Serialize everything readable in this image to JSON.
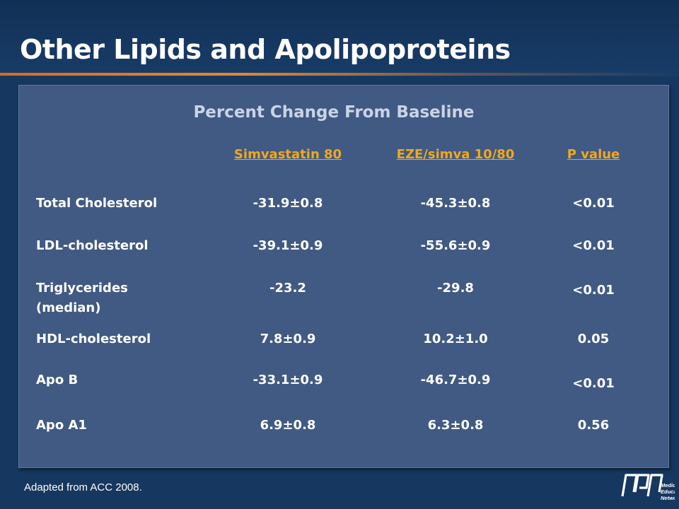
{
  "slide": {
    "title": "Other Lipids and Apolipoproteins",
    "table_title": "Percent Change From Baseline",
    "footer": "Adapted from ACC 2008.",
    "logo_text": [
      "Medical",
      "Education",
      "Network"
    ]
  },
  "table": {
    "columns": [
      "Simvastatin 80",
      "EZE/simva 10/80",
      "P value"
    ],
    "rows": [
      {
        "label": "Total Cholesterol",
        "label2": "",
        "simva": "-31.9±0.8",
        "eze": "-45.3±0.8",
        "p": "<0.01"
      },
      {
        "label": "LDL-cholesterol",
        "label2": "",
        "simva": "-39.1±0.9",
        "eze": "-55.6±0.9",
        "p": "<0.01"
      },
      {
        "label": "Triglycerides",
        "label2": "(median)",
        "simva": "-23.2",
        "eze": "-29.8",
        "p": "<0.01"
      },
      {
        "label": "HDL-cholesterol",
        "label2": "",
        "simva": "7.8±0.9",
        "eze": "10.2±1.0",
        "p": "0.05"
      },
      {
        "label": "Apo B",
        "label2": "",
        "simva": "-33.1±0.9",
        "eze": "-46.7±0.9",
        "p": "<0.01"
      },
      {
        "label": "Apo A1",
        "label2": "",
        "simva": "6.9±0.8",
        "eze": "6.3±0.8",
        "p": "0.56"
      }
    ]
  },
  "colors": {
    "background": "#16375f",
    "panel": "#415a83",
    "header_accent": "#f0a81c",
    "title_rule": "#d96b1c"
  }
}
